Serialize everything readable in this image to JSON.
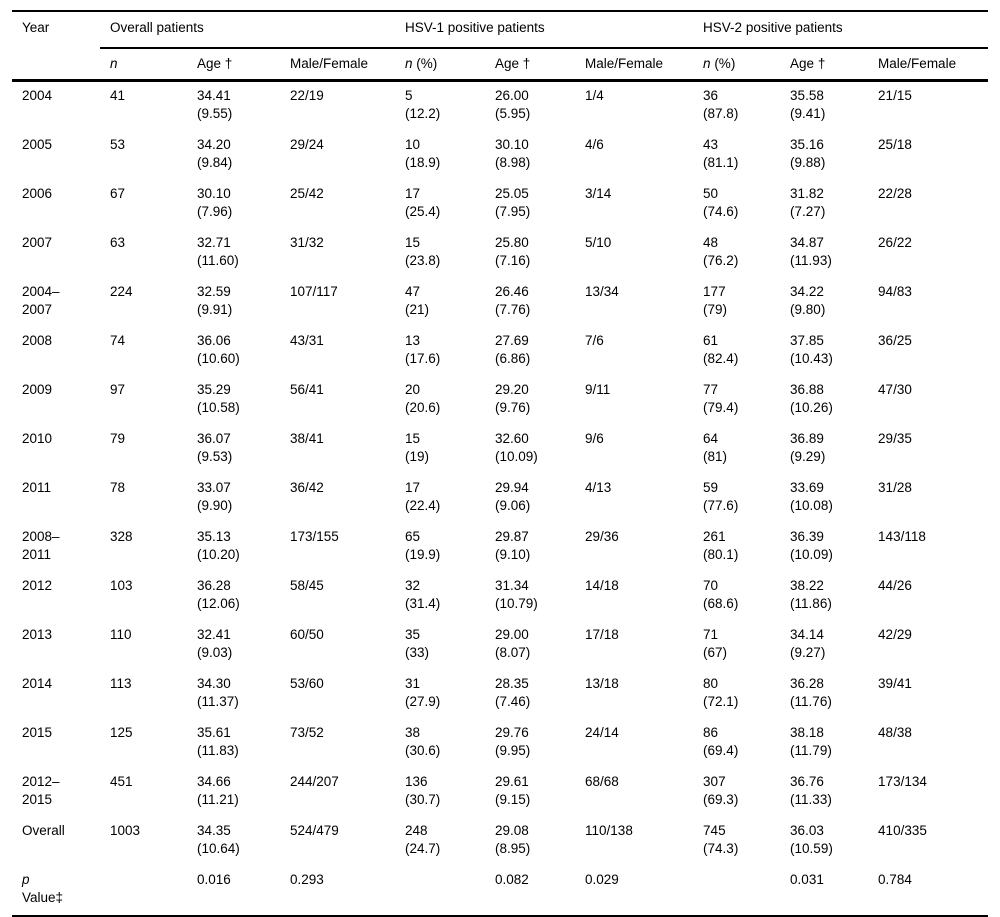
{
  "header": {
    "year_label": "Year",
    "groups": [
      {
        "label": "Overall patients"
      },
      {
        "label": "HSV-1 positive patients"
      },
      {
        "label": "HSV-2 positive patients"
      }
    ],
    "sub": [
      {
        "italic": "n",
        "rest": ""
      },
      {
        "italic": "",
        "rest": "Age †"
      },
      {
        "italic": "",
        "rest": "Male/Female"
      },
      {
        "italic": "n",
        "rest": " (%)"
      },
      {
        "italic": "",
        "rest": "Age †"
      },
      {
        "italic": "",
        "rest": "Male/Female"
      },
      {
        "italic": "n",
        "rest": " (%)"
      },
      {
        "italic": "",
        "rest": "Age †"
      },
      {
        "italic": "",
        "rest": "Male/Female"
      }
    ]
  },
  "rows": [
    {
      "year": "2004",
      "cells": [
        "41",
        "34.41\n(9.55)",
        "22/19",
        "5\n(12.2)",
        "26.00\n(5.95)",
        "1/4",
        "36\n(87.8)",
        "35.58\n(9.41)",
        "21/15"
      ]
    },
    {
      "year": "2005",
      "cells": [
        "53",
        "34.20\n(9.84)",
        "29/24",
        "10\n(18.9)",
        "30.10\n(8.98)",
        "4/6",
        "43\n(81.1)",
        "35.16\n(9.88)",
        "25/18"
      ]
    },
    {
      "year": "2006",
      "cells": [
        "67",
        "30.10\n(7.96)",
        "25/42",
        "17\n(25.4)",
        "25.05\n(7.95)",
        "3/14",
        "50\n(74.6)",
        "31.82\n(7.27)",
        "22/28"
      ]
    },
    {
      "year": "2007",
      "cells": [
        "63",
        "32.71\n(11.60)",
        "31/32",
        "15\n(23.8)",
        "25.80\n(7.16)",
        "5/10",
        "48\n(76.2)",
        "34.87\n(11.93)",
        "26/22"
      ]
    },
    {
      "year": "2004–\n2007",
      "cells": [
        "224",
        "32.59\n(9.91)",
        "107/117",
        "47\n(21)",
        "26.46\n(7.76)",
        "13/34",
        "177\n(79)",
        "34.22\n(9.80)",
        "94/83"
      ]
    },
    {
      "year": "2008",
      "cells": [
        "74",
        "36.06\n(10.60)",
        "43/31",
        "13\n(17.6)",
        "27.69\n(6.86)",
        "7/6",
        "61\n(82.4)",
        "37.85\n(10.43)",
        "36/25"
      ]
    },
    {
      "year": "2009",
      "cells": [
        "97",
        "35.29\n(10.58)",
        "56/41",
        "20\n(20.6)",
        "29.20\n(9.76)",
        "9/11",
        "77\n(79.4)",
        "36.88\n(10.26)",
        "47/30"
      ]
    },
    {
      "year": "2010",
      "cells": [
        "79",
        "36.07\n(9.53)",
        "38/41",
        "15\n(19)",
        "32.60\n(10.09)",
        "9/6",
        "64\n(81)",
        "36.89\n(9.29)",
        "29/35"
      ]
    },
    {
      "year": "2011",
      "cells": [
        "78",
        "33.07\n(9.90)",
        "36/42",
        "17\n(22.4)",
        "29.94\n(9.06)",
        "4/13",
        "59\n(77.6)",
        "33.69\n(10.08)",
        "31/28"
      ]
    },
    {
      "year": "2008–\n2011",
      "cells": [
        "328",
        "35.13\n(10.20)",
        "173/155",
        "65\n(19.9)",
        "29.87\n(9.10)",
        "29/36",
        "261\n(80.1)",
        "36.39\n(10.09)",
        "143/118"
      ]
    },
    {
      "year": "2012",
      "cells": [
        "103",
        "36.28\n(12.06)",
        "58/45",
        "32\n(31.4)",
        "31.34\n(10.79)",
        "14/18",
        "70\n(68.6)",
        "38.22\n(11.86)",
        "44/26"
      ]
    },
    {
      "year": "2013",
      "cells": [
        "110",
        "32.41\n(9.03)",
        "60/50",
        "35\n(33)",
        "29.00\n(8.07)",
        "17/18",
        "71\n(67)",
        "34.14\n(9.27)",
        "42/29"
      ]
    },
    {
      "year": "2014",
      "cells": [
        "113",
        "34.30\n(11.37)",
        "53/60",
        "31\n(27.9)",
        "28.35\n(7.46)",
        "13/18",
        "80\n(72.1)",
        "36.28\n(11.76)",
        "39/41"
      ]
    },
    {
      "year": "2015",
      "cells": [
        "125",
        "35.61\n(11.83)",
        "73/52",
        "38\n(30.6)",
        "29.76\n(9.95)",
        "24/14",
        "86\n(69.4)",
        "38.18\n(11.79)",
        "48/38"
      ]
    },
    {
      "year": "2012–\n2015",
      "cells": [
        "451",
        "34.66\n(11.21)",
        "244/207",
        "136\n(30.7)",
        "29.61\n(9.15)",
        "68/68",
        "307\n(69.3)",
        "36.76\n(11.33)",
        "173/134"
      ]
    },
    {
      "year": "Overall",
      "cells": [
        "1003",
        "34.35\n(10.64)",
        "524/479",
        "248\n(24.7)",
        "29.08\n(8.95)",
        "110/138",
        "745\n(74.3)",
        "36.03\n(10.59)",
        "410/335"
      ]
    },
    {
      "year": "p\nValue‡",
      "p_row": true,
      "cells": [
        "",
        "0.016",
        "0.293",
        "",
        "0.082",
        "0.029",
        "",
        "0.031",
        "0.784"
      ]
    }
  ]
}
